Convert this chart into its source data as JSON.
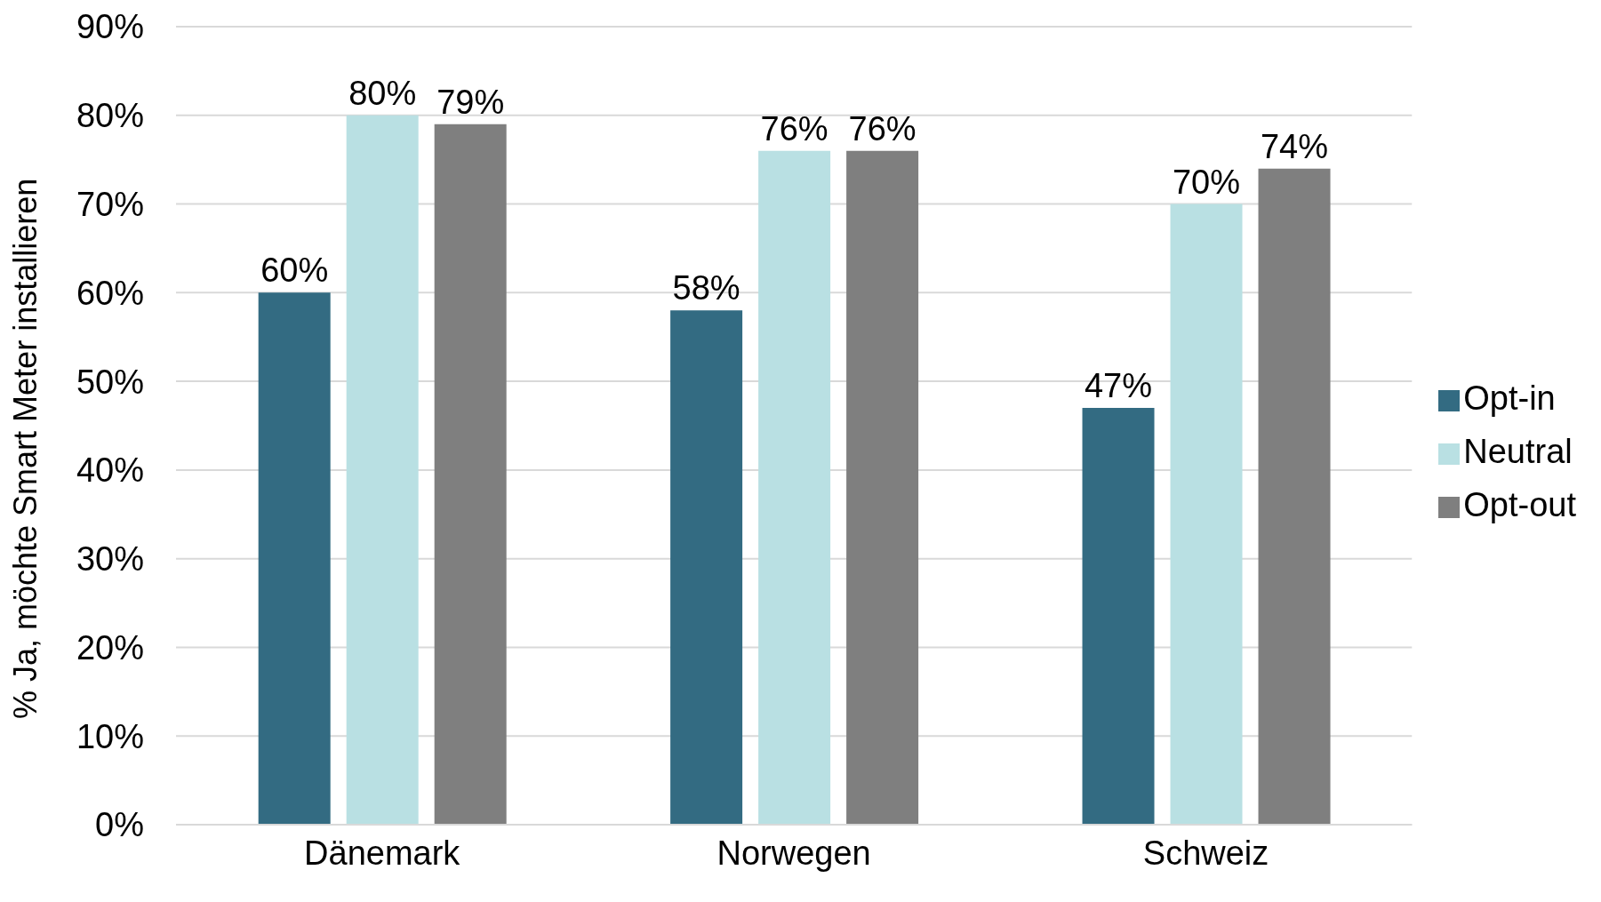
{
  "chart_data": {
    "type": "bar",
    "ylabel": "% Ja, möchte Smart Meter installieren",
    "categories": [
      "Dänemark",
      "Norwegen",
      "Schweiz"
    ],
    "series": [
      {
        "name": "Opt-in",
        "color": "#336b82",
        "values": [
          60,
          58,
          47
        ],
        "value_labels": [
          "60%",
          "58%",
          "47%"
        ]
      },
      {
        "name": "Neutral",
        "color": "#b9e0e3",
        "values": [
          80,
          76,
          70
        ],
        "value_labels": [
          "80%",
          "76%",
          "70%"
        ]
      },
      {
        "name": "Opt-out",
        "color": "#7f7f7f",
        "values": [
          79,
          76,
          74
        ],
        "value_labels": [
          "79%",
          "76%",
          "74%"
        ]
      }
    ],
    "ylim": [
      0,
      90
    ],
    "yticks": [
      {
        "value": 0,
        "label": "0%"
      },
      {
        "value": 10,
        "label": "10%"
      },
      {
        "value": 20,
        "label": "20%"
      },
      {
        "value": 30,
        "label": "30%"
      },
      {
        "value": 40,
        "label": "40%"
      },
      {
        "value": 50,
        "label": "50%"
      },
      {
        "value": 60,
        "label": "60%"
      },
      {
        "value": 70,
        "label": "70%"
      },
      {
        "value": 80,
        "label": "80%"
      },
      {
        "value": 90,
        "label": "90%"
      }
    ],
    "grid": "y",
    "legend": "right"
  }
}
